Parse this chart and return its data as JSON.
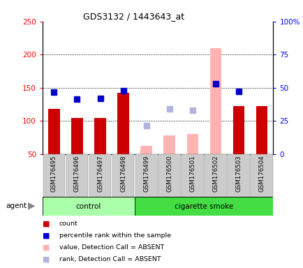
{
  "title": "GDS3132 / 1443643_at",
  "samples": [
    "GSM176495",
    "GSM176496",
    "GSM176497",
    "GSM176498",
    "GSM176499",
    "GSM176500",
    "GSM176501",
    "GSM176502",
    "GSM176503",
    "GSM176504"
  ],
  "groups": [
    "control",
    "control",
    "control",
    "control",
    "cigarette smoke",
    "cigarette smoke",
    "cigarette smoke",
    "cigarette smoke",
    "cigarette smoke",
    "cigarette smoke"
  ],
  "count_values": [
    118,
    105,
    105,
    142,
    null,
    null,
    null,
    null,
    122,
    122
  ],
  "count_absent_values": [
    null,
    null,
    null,
    null,
    62,
    78,
    80,
    210,
    null,
    null
  ],
  "rank_present_values": [
    143,
    133,
    134,
    146,
    null,
    null,
    null,
    156,
    144,
    null
  ],
  "rank_absent_values": [
    null,
    null,
    null,
    null,
    93,
    118,
    116,
    null,
    null,
    null
  ],
  "ylim_left": [
    50,
    250
  ],
  "ylim_right": [
    0,
    100
  ],
  "left_yticks": [
    50,
    100,
    150,
    200,
    250
  ],
  "right_yticks": [
    0,
    25,
    50,
    75,
    100
  ],
  "right_yticklabels": [
    "0",
    "25",
    "50",
    "75",
    "100%"
  ],
  "grid_values": [
    100,
    150,
    200
  ],
  "bar_color_present": "#cc0000",
  "bar_color_absent": "#ffb3b3",
  "rank_color_present": "#0000cc",
  "rank_color_absent": "#b3b3dd",
  "control_color": "#aaffaa",
  "smoke_color": "#44dd44",
  "xlabel_bg": "#cccccc",
  "background_color": "#ffffff",
  "group_label_row_color_control": "#aaffaa",
  "group_label_row_color_smoke": "#44dd44"
}
